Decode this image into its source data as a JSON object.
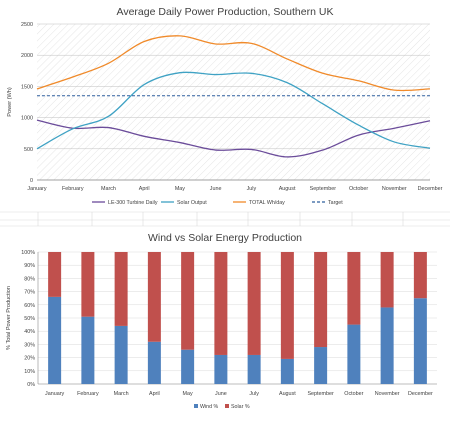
{
  "chart_data": [
    {
      "type": "line",
      "title": "Average Daily Power Production, Southern UK",
      "ylabel": "Power (Wh)",
      "xlabel": "",
      "categories": [
        "January",
        "February",
        "March",
        "April",
        "May",
        "June",
        "July",
        "August",
        "September",
        "October",
        "November",
        "December"
      ],
      "ylim": [
        0,
        2500
      ],
      "yticks": [
        0,
        500,
        1000,
        1500,
        2000,
        2500
      ],
      "grid": true,
      "legend": "bottom",
      "series": [
        {
          "name": "LE-300 Turbine Daily",
          "color": "#6b4c9a",
          "dash": false,
          "values": [
            960,
            830,
            840,
            700,
            600,
            480,
            490,
            370,
            480,
            720,
            830,
            950
          ]
        },
        {
          "name": "Solar Output",
          "color": "#3fa2c4",
          "dash": false,
          "values": [
            500,
            820,
            1020,
            1530,
            1720,
            1690,
            1710,
            1560,
            1220,
            880,
            610,
            510
          ]
        },
        {
          "name": "TOTAL Wh/day",
          "color": "#f08a2a",
          "dash": false,
          "values": [
            1460,
            1650,
            1870,
            2220,
            2310,
            2180,
            2190,
            1940,
            1710,
            1590,
            1440,
            1460
          ]
        },
        {
          "name": "Target",
          "color": "#2e5f9e",
          "dash": true,
          "values": [
            1350,
            1350,
            1350,
            1350,
            1350,
            1350,
            1350,
            1350,
            1350,
            1350,
            1350,
            1350
          ]
        }
      ]
    },
    {
      "type": "bar",
      "stacked": true,
      "title": "Wind vs Solar Energy Production",
      "ylabel": "% Total Power Production",
      "xlabel": "",
      "categories": [
        "January",
        "February",
        "March",
        "April",
        "May",
        "June",
        "July",
        "August",
        "September",
        "October",
        "November",
        "December"
      ],
      "ylim": [
        0,
        100
      ],
      "yticks": [
        "0%",
        "10%",
        "20%",
        "30%",
        "40%",
        "50%",
        "60%",
        "70%",
        "80%",
        "90%",
        "100%"
      ],
      "legend": "bottom",
      "series": [
        {
          "name": "Wind %",
          "color": "#4f81bd",
          "values": [
            66,
            51,
            44,
            32,
            26,
            22,
            22,
            19,
            28,
            45,
            58,
            65
          ]
        },
        {
          "name": "Solar %",
          "color": "#c0504d",
          "values": [
            34,
            49,
            56,
            68,
            74,
            78,
            78,
            81,
            72,
            55,
            42,
            35
          ]
        }
      ]
    }
  ]
}
